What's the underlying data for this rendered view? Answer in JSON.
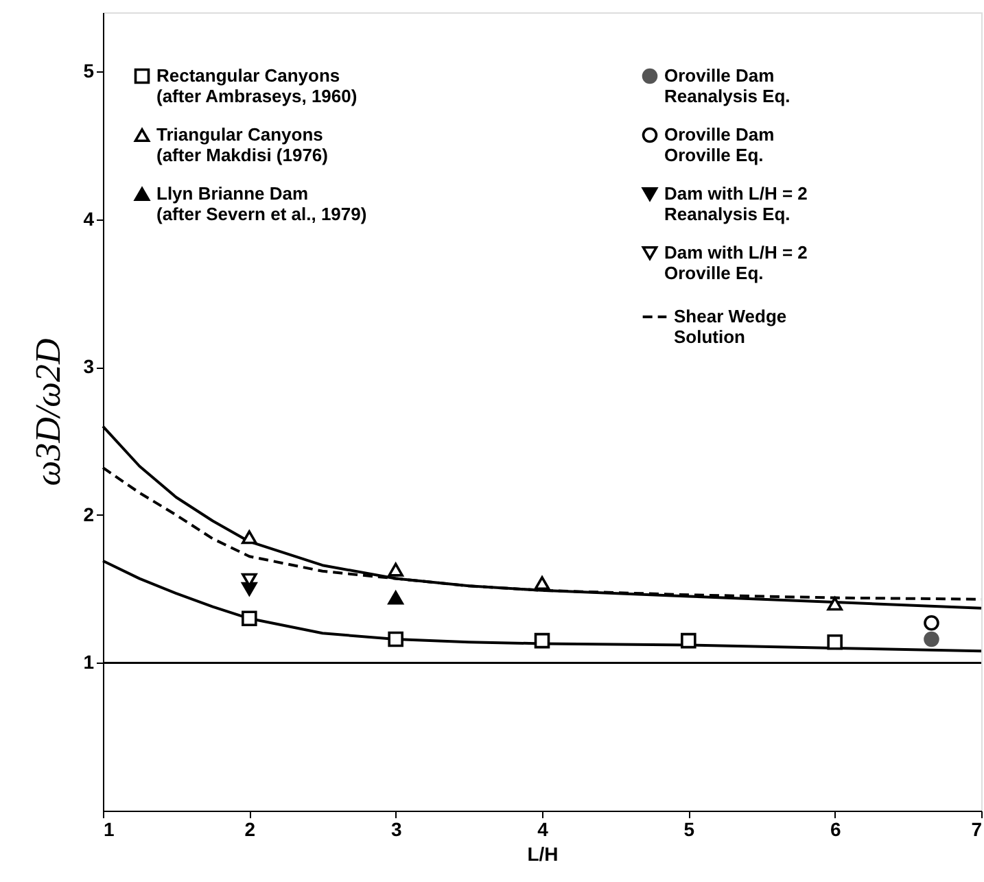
{
  "chart_data": {
    "type": "scatter",
    "xlabel": "L/H",
    "ylabel": "ω3D/ω2D",
    "xlim": [
      1,
      7
    ],
    "ylim": [
      0,
      5.4
    ],
    "xticks": [
      1,
      2,
      3,
      4,
      5,
      6,
      7
    ],
    "yticks": [
      1,
      2,
      3,
      4,
      5
    ],
    "grid": false,
    "legend": "top",
    "ref_lines": [
      {
        "axis": "y",
        "value": 1,
        "color": "#000000",
        "line_style": "solid"
      }
    ],
    "series": [
      {
        "name": "Rectangular Canyons\n(after Ambraseys, 1960)",
        "marker": "square-open",
        "color": "#000000",
        "x": [
          2,
          3,
          4,
          5,
          6
        ],
        "values": [
          1.3,
          1.16,
          1.15,
          1.15,
          1.14
        ]
      },
      {
        "name": "Triangular Canyons\n(after Makdisi (1976)",
        "marker": "triangle-open",
        "color": "#000000",
        "x": [
          2,
          3,
          4,
          6
        ],
        "values": [
          1.85,
          1.63,
          1.54,
          1.4
        ]
      },
      {
        "name": "Llyn Brianne Dam\n(after Severn et al., 1979)",
        "marker": "triangle",
        "color": "#000000",
        "x": [
          3
        ],
        "values": [
          1.44
        ]
      },
      {
        "name": "Oroville Dam\nReanalysis Eq.",
        "marker": "circle",
        "color": "#555555",
        "x": [
          6.66
        ],
        "values": [
          1.16
        ]
      },
      {
        "name": "Oroville Dam\nOroville Eq.",
        "marker": "circle-open",
        "color": "#000000",
        "x": [
          6.66
        ],
        "values": [
          1.27
        ]
      },
      {
        "name": "Dam with L/H = 2\nReanalysis Eq.",
        "marker": "triangle-down",
        "color": "#000000",
        "x": [
          2
        ],
        "values": [
          1.5
        ]
      },
      {
        "name": "Dam with L/H = 2\nOroville Eq.",
        "marker": "triangle-down-open",
        "color": "#000000",
        "x": [
          2
        ],
        "values": [
          1.56
        ]
      },
      {
        "name": "Shear Wedge\nSolution",
        "type": "line",
        "line_style": "dashed",
        "color": "#000000",
        "x": [
          1,
          1.25,
          1.5,
          1.75,
          2,
          2.5,
          3,
          3.5,
          4,
          5,
          6,
          7
        ],
        "values": [
          2.32,
          2.15,
          2.0,
          1.84,
          1.72,
          1.62,
          1.57,
          1.52,
          1.49,
          1.46,
          1.44,
          1.43
        ]
      },
      {
        "type": "line",
        "line_style": "solid",
        "color": "#000000",
        "x": [
          1,
          1.25,
          1.5,
          1.75,
          2,
          2.5,
          3,
          3.5,
          4,
          5,
          6,
          7
        ],
        "values": [
          2.6,
          2.33,
          2.12,
          1.96,
          1.82,
          1.66,
          1.57,
          1.52,
          1.49,
          1.45,
          1.41,
          1.37
        ]
      },
      {
        "type": "line",
        "line_style": "solid",
        "color": "#000000",
        "x": [
          1,
          1.25,
          1.5,
          1.75,
          2,
          2.5,
          3,
          3.5,
          4,
          5,
          6,
          7
        ],
        "values": [
          1.69,
          1.57,
          1.47,
          1.38,
          1.3,
          1.2,
          1.16,
          1.14,
          1.13,
          1.12,
          1.1,
          1.08
        ]
      }
    ]
  }
}
